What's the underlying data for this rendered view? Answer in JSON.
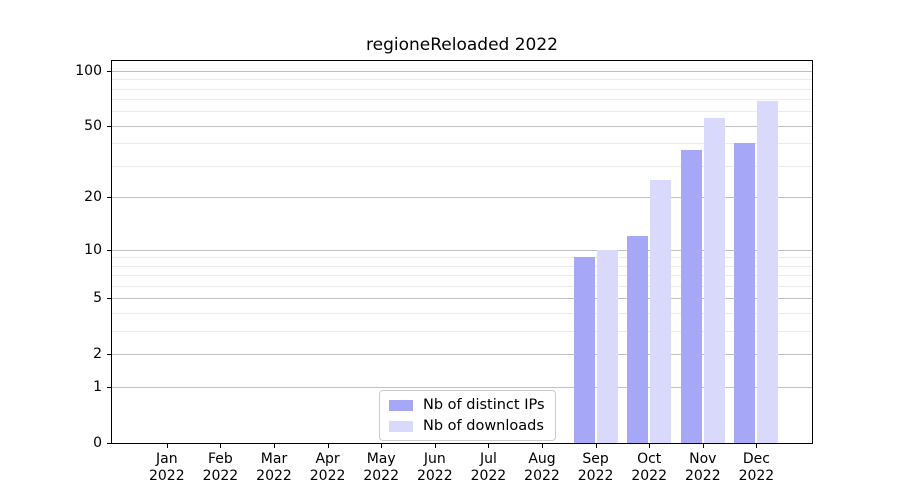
{
  "chart_data": {
    "type": "bar",
    "title": "regioneReloaded 2022",
    "months": [
      "Jan",
      "Feb",
      "Mar",
      "Apr",
      "May",
      "Jun",
      "Jul",
      "Aug",
      "Sep",
      "Oct",
      "Nov",
      "Dec"
    ],
    "year": "2022",
    "series": [
      {
        "name": "Nb of distinct IPs",
        "color": "#a7a7f7",
        "values": [
          0,
          0,
          0,
          0,
          0,
          0,
          0,
          0,
          9,
          12,
          37,
          40
        ]
      },
      {
        "name": "Nb of downloads",
        "color": "#d9d9fb",
        "values": [
          0,
          0,
          0,
          0,
          0,
          0,
          0,
          0,
          10,
          25,
          55,
          68
        ]
      }
    ],
    "y_scale": "log10(1+x)",
    "y_ticks_major": [
      0,
      1,
      2,
      5,
      10,
      20,
      50,
      100
    ],
    "y_ticks_minor": [
      3,
      4,
      6,
      7,
      8,
      9,
      30,
      40,
      60,
      70,
      80,
      90
    ],
    "ylim": [
      0,
      113
    ],
    "xlabel": "",
    "ylabel": "",
    "grid": "on",
    "legend_position": "lower center"
  },
  "colors": {
    "background": "#ffffff",
    "spine": "#000000",
    "text": "#000000",
    "grid_major": "#c0c0c0",
    "grid_minor": "#eaeaea",
    "legend_border": "#cccccc"
  }
}
